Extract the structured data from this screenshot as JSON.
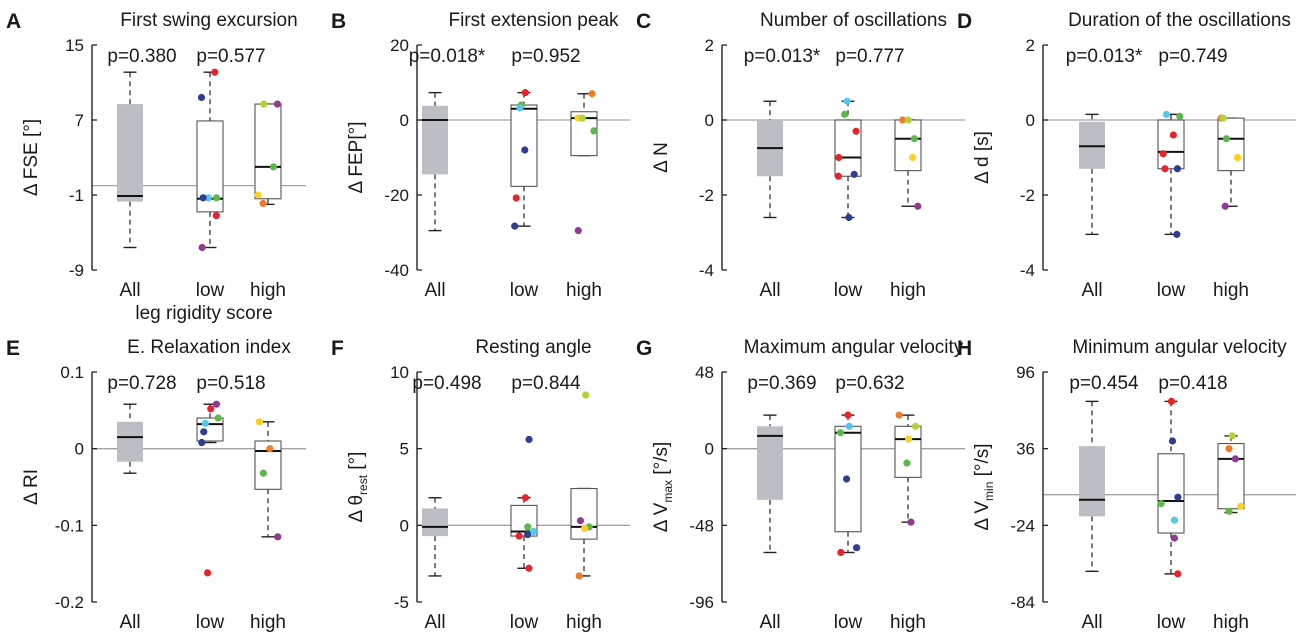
{
  "figure": {
    "colors": {
      "grey_box": "#bdbec3",
      "axis": "#222222",
      "zero_line": "#a3a3a3",
      "red": "#e8232a",
      "blue": "#2e3f92",
      "cyan": "#56c7ee",
      "green": "#5cb848",
      "orange": "#ee7d2b",
      "purple": "#8e3c91",
      "yellow": "#fbd123",
      "lime": "#b5d138"
    }
  },
  "chart_data": [
    {
      "letter": "A",
      "title": "First swing excursion",
      "type": "box",
      "ylabel_main": "Δ FSE [°]",
      "ylabel_sub": "",
      "ylim": [
        -9,
        15
      ],
      "yticks": [
        "-9",
        "-1",
        "7",
        "15"
      ],
      "ref_line": 0,
      "xlabel": "leg rigidity score",
      "categories": [
        "All",
        "low",
        "high"
      ],
      "p_values": [
        "p=0.380",
        "p=0.577"
      ],
      "boxes": [
        {
          "min": -6.6,
          "q1": -1.7,
          "median": -1.1,
          "q3": 8.7,
          "max": 12.1
        },
        {
          "min": -6.6,
          "q1": -2.8,
          "median": -1.4,
          "q3": 6.9,
          "max": 12.1
        },
        {
          "min": -2.0,
          "q1": -1.4,
          "median": 2.0,
          "q3": 8.7,
          "max": 8.7
        }
      ],
      "points": [
        {
          "group": "low",
          "value": 12.1,
          "color": "red"
        },
        {
          "group": "low",
          "value": 9.4,
          "color": "blue"
        },
        {
          "group": "low",
          "value": -1.3,
          "color": "cyan"
        },
        {
          "group": "low",
          "value": -1.3,
          "color": "green"
        },
        {
          "group": "low",
          "value": -1.3,
          "color": "blue"
        },
        {
          "group": "low",
          "value": -3.2,
          "color": "red"
        },
        {
          "group": "low",
          "value": -6.6,
          "color": "purple"
        },
        {
          "group": "high",
          "value": 8.7,
          "color": "purple"
        },
        {
          "group": "high",
          "value": 8.7,
          "color": "lime"
        },
        {
          "group": "high",
          "value": 2.0,
          "color": "green"
        },
        {
          "group": "high",
          "value": -1.0,
          "color": "yellow"
        },
        {
          "group": "high",
          "value": -1.9,
          "color": "orange"
        }
      ]
    },
    {
      "letter": "B",
      "title": "First extension peak",
      "type": "box",
      "ylabel_main": "Δ FEP[°]",
      "ylabel_sub": "",
      "ylim": [
        -40,
        20
      ],
      "yticks": [
        "-40",
        "-20",
        "0",
        "20"
      ],
      "ref_line": 0,
      "xlabel": "",
      "categories": [
        "All",
        "low",
        "high"
      ],
      "p_values": [
        "p=0.018*",
        "p=0.952"
      ],
      "boxes": [
        {
          "min": -29.5,
          "q1": -14.5,
          "median": 0,
          "q3": 3.8,
          "max": 7.3
        },
        {
          "min": -28.3,
          "q1": -17.7,
          "median": 3.0,
          "q3": 4.0,
          "max": 7.3
        },
        {
          "min": -9.5,
          "q1": -9.5,
          "median": 0.5,
          "q3": 2.2,
          "max": 7.0
        }
      ],
      "points": [
        {
          "group": "low",
          "value": 7.3,
          "color": "red"
        },
        {
          "group": "low",
          "value": 4.0,
          "color": "green"
        },
        {
          "group": "low",
          "value": 3.2,
          "color": "cyan"
        },
        {
          "group": "low",
          "value": -8.0,
          "color": "blue"
        },
        {
          "group": "low",
          "value": -20.8,
          "color": "red"
        },
        {
          "group": "low",
          "value": -28.3,
          "color": "blue"
        },
        {
          "group": "high",
          "value": 7.0,
          "color": "orange"
        },
        {
          "group": "high",
          "value": 0.5,
          "color": "yellow"
        },
        {
          "group": "high",
          "value": 0.5,
          "color": "lime"
        },
        {
          "group": "high",
          "value": -2.9,
          "color": "green"
        },
        {
          "group": "high",
          "value": -29.5,
          "color": "purple"
        }
      ]
    },
    {
      "letter": "C",
      "title": "Number of oscillations",
      "type": "box",
      "ylabel_main": "Δ N",
      "ylabel_sub": "",
      "ylim": [
        -4,
        2
      ],
      "yticks": [
        "-4",
        "-2",
        "0",
        "2"
      ],
      "ref_line": 0,
      "xlabel": "",
      "categories": [
        "All",
        "low",
        "high"
      ],
      "p_values": [
        "p=0.013*",
        "p=0.777"
      ],
      "boxes": [
        {
          "min": -2.6,
          "q1": -1.5,
          "median": -0.75,
          "q3": 0,
          "max": 0.5
        },
        {
          "min": -2.6,
          "q1": -1.5,
          "median": -1.0,
          "q3": 0,
          "max": 0.5
        },
        {
          "min": -2.3,
          "q1": -1.35,
          "median": -0.5,
          "q3": 0,
          "max": 0
        }
      ],
      "points": [
        {
          "group": "low",
          "value": 0.5,
          "color": "cyan"
        },
        {
          "group": "low",
          "value": 0.15,
          "color": "green"
        },
        {
          "group": "low",
          "value": -0.3,
          "color": "red"
        },
        {
          "group": "low",
          "value": -1.0,
          "color": "red"
        },
        {
          "group": "low",
          "value": -1.45,
          "color": "blue"
        },
        {
          "group": "low",
          "value": -1.5,
          "color": "red"
        },
        {
          "group": "low",
          "value": -2.6,
          "color": "blue"
        },
        {
          "group": "high",
          "value": 0,
          "color": "orange"
        },
        {
          "group": "high",
          "value": 0,
          "color": "lime"
        },
        {
          "group": "high",
          "value": -0.5,
          "color": "green"
        },
        {
          "group": "high",
          "value": -1.0,
          "color": "yellow"
        },
        {
          "group": "high",
          "value": -2.3,
          "color": "purple"
        }
      ]
    },
    {
      "letter": "D",
      "title": "Duration of the oscillations",
      "type": "box",
      "ylabel_main": "Δ d [s]",
      "ylabel_sub": "",
      "ylim": [
        -4,
        2
      ],
      "yticks": [
        "-4",
        "-2",
        "0",
        "2"
      ],
      "ref_line": 0,
      "xlabel": "",
      "categories": [
        "All",
        "low",
        "high"
      ],
      "p_values": [
        "p=0.013*",
        "p=0.749"
      ],
      "boxes": [
        {
          "min": -3.05,
          "q1": -1.3,
          "median": -0.7,
          "q3": -0.05,
          "max": 0.15
        },
        {
          "min": -3.05,
          "q1": -1.3,
          "median": -0.85,
          "q3": 0,
          "max": 0.15
        },
        {
          "min": -2.3,
          "q1": -1.35,
          "median": -0.5,
          "q3": 0.05,
          "max": 0.05
        }
      ],
      "points": [
        {
          "group": "low",
          "value": 0.15,
          "color": "cyan"
        },
        {
          "group": "low",
          "value": 0.1,
          "color": "green"
        },
        {
          "group": "low",
          "value": -0.4,
          "color": "red"
        },
        {
          "group": "low",
          "value": -0.9,
          "color": "red"
        },
        {
          "group": "low",
          "value": -1.3,
          "color": "red"
        },
        {
          "group": "low",
          "value": -1.3,
          "color": "blue"
        },
        {
          "group": "low",
          "value": -3.05,
          "color": "blue"
        },
        {
          "group": "high",
          "value": 0.05,
          "color": "orange"
        },
        {
          "group": "high",
          "value": 0.05,
          "color": "lime"
        },
        {
          "group": "high",
          "value": -0.5,
          "color": "green"
        },
        {
          "group": "high",
          "value": -1.0,
          "color": "yellow"
        },
        {
          "group": "high",
          "value": -2.3,
          "color": "purple"
        }
      ]
    },
    {
      "letter": "E",
      "title": "E. Relaxation index",
      "type": "box",
      "ylabel_main": "Δ RI",
      "ylabel_sub": "",
      "ylim": [
        -0.2,
        0.1
      ],
      "yticks": [
        "-0.2",
        "-0.1",
        "0",
        "0.1"
      ],
      "ref_line": 0,
      "xlabel": "",
      "categories": [
        "All",
        "low",
        "high"
      ],
      "p_values": [
        "p=0.728",
        "p=0.518"
      ],
      "boxes": [
        {
          "min": -0.032,
          "q1": -0.017,
          "median": 0.015,
          "q3": 0.035,
          "max": 0.058
        },
        {
          "min": 0.008,
          "q1": 0.01,
          "median": 0.032,
          "q3": 0.04,
          "max": 0.058
        },
        {
          "min": -0.115,
          "q1": -0.053,
          "median": -0.003,
          "q3": 0.01,
          "max": 0.035
        }
      ],
      "points": [
        {
          "group": "low",
          "value": 0.058,
          "color": "purple"
        },
        {
          "group": "low",
          "value": 0.052,
          "color": "red"
        },
        {
          "group": "low",
          "value": 0.04,
          "color": "green"
        },
        {
          "group": "low",
          "value": 0.033,
          "color": "cyan"
        },
        {
          "group": "low",
          "value": 0.022,
          "color": "blue"
        },
        {
          "group": "low",
          "value": 0.008,
          "color": "blue"
        },
        {
          "group": "low",
          "value": -0.162,
          "color": "red"
        },
        {
          "group": "high",
          "value": 0.035,
          "color": "yellow"
        },
        {
          "group": "high",
          "value": 0.0,
          "color": "orange"
        },
        {
          "group": "high",
          "value": -0.032,
          "color": "green"
        },
        {
          "group": "high",
          "value": -0.115,
          "color": "purple"
        }
      ]
    },
    {
      "letter": "F",
      "title": "Resting angle",
      "type": "box",
      "ylabel_main": "Δ θ",
      "ylabel_sub": "rest",
      "ylabel_tail": " [°]",
      "ylim": [
        -5,
        10
      ],
      "yticks": [
        "-5",
        "0",
        "5",
        "10"
      ],
      "ref_line": 0,
      "xlabel": "",
      "categories": [
        "All",
        "low",
        "high"
      ],
      "p_values": [
        "p=0.498",
        "p=0.844"
      ],
      "boxes": [
        {
          "min": -3.3,
          "q1": -0.7,
          "median": -0.1,
          "q3": 1.1,
          "max": 1.8
        },
        {
          "min": -2.8,
          "q1": -0.7,
          "median": -0.4,
          "q3": 1.3,
          "max": 1.8
        },
        {
          "min": -3.3,
          "q1": -0.9,
          "median": -0.1,
          "q3": 2.4,
          "max": 2.4
        }
      ],
      "points": [
        {
          "group": "low",
          "value": 5.6,
          "color": "blue"
        },
        {
          "group": "low",
          "value": 1.8,
          "color": "red"
        },
        {
          "group": "low",
          "value": -0.1,
          "color": "green"
        },
        {
          "group": "low",
          "value": -0.4,
          "color": "cyan"
        },
        {
          "group": "low",
          "value": -0.6,
          "color": "blue"
        },
        {
          "group": "low",
          "value": -0.7,
          "color": "red"
        },
        {
          "group": "low",
          "value": -2.8,
          "color": "red"
        },
        {
          "group": "high",
          "value": 8.5,
          "color": "lime"
        },
        {
          "group": "high",
          "value": 0.3,
          "color": "purple"
        },
        {
          "group": "high",
          "value": -0.1,
          "color": "green"
        },
        {
          "group": "high",
          "value": -0.2,
          "color": "yellow"
        },
        {
          "group": "high",
          "value": -3.3,
          "color": "orange"
        }
      ]
    },
    {
      "letter": "G",
      "title": "Maximum angular velocity",
      "type": "box",
      "ylabel_main": "Δ V",
      "ylabel_sub": "max",
      "ylabel_tail": " [°/s]",
      "ylim": [
        -96,
        48
      ],
      "yticks": [
        "-96",
        "-48",
        "0",
        "48"
      ],
      "ref_line": 0,
      "xlabel": "",
      "categories": [
        "All",
        "low",
        "high"
      ],
      "p_values": [
        "p=0.369",
        "p=0.632"
      ],
      "boxes": [
        {
          "min": -65,
          "q1": -32,
          "median": 8,
          "q3": 14,
          "max": 21
        },
        {
          "min": -65,
          "q1": -52,
          "median": 10,
          "q3": 14,
          "max": 21
        },
        {
          "min": -46,
          "q1": -18,
          "median": 6,
          "q3": 14,
          "max": 21
        }
      ],
      "points": [
        {
          "group": "low",
          "value": 21,
          "color": "red"
        },
        {
          "group": "low",
          "value": 14,
          "color": "cyan"
        },
        {
          "group": "low",
          "value": 10,
          "color": "green"
        },
        {
          "group": "low",
          "value": -19,
          "color": "blue"
        },
        {
          "group": "low",
          "value": -62,
          "color": "blue"
        },
        {
          "group": "low",
          "value": -65,
          "color": "red"
        },
        {
          "group": "high",
          "value": 21,
          "color": "orange"
        },
        {
          "group": "high",
          "value": 14,
          "color": "lime"
        },
        {
          "group": "high",
          "value": 6,
          "color": "yellow"
        },
        {
          "group": "high",
          "value": -9,
          "color": "green"
        },
        {
          "group": "high",
          "value": -46,
          "color": "purple"
        }
      ]
    },
    {
      "letter": "H",
      "title": "Minimum angular velocity",
      "type": "box",
      "ylabel_main": "Δ V",
      "ylabel_sub": "min",
      "ylabel_tail": " [°/s]",
      "ylim": [
        -84,
        96
      ],
      "yticks": [
        "-84",
        "-24",
        "36",
        "96"
      ],
      "ref_line": 0,
      "xlabel": "",
      "categories": [
        "All",
        "low",
        "high"
      ],
      "p_values": [
        "p=0.454",
        "p=0.418"
      ],
      "boxes": [
        {
          "min": -60,
          "q1": -17,
          "median": -4,
          "q3": 38,
          "max": 73
        },
        {
          "min": -62,
          "q1": -30,
          "median": -5,
          "q3": 32,
          "max": 73
        },
        {
          "min": -14,
          "q1": -11,
          "median": 28,
          "q3": 40,
          "max": 46
        }
      ],
      "points": [
        {
          "group": "low",
          "value": 73,
          "color": "red"
        },
        {
          "group": "low",
          "value": 42,
          "color": "blue"
        },
        {
          "group": "low",
          "value": -2,
          "color": "blue"
        },
        {
          "group": "low",
          "value": -7,
          "color": "green"
        },
        {
          "group": "low",
          "value": -20,
          "color": "cyan"
        },
        {
          "group": "low",
          "value": -34,
          "color": "purple"
        },
        {
          "group": "low",
          "value": -62,
          "color": "red"
        },
        {
          "group": "high",
          "value": 46,
          "color": "lime"
        },
        {
          "group": "high",
          "value": 36,
          "color": "orange"
        },
        {
          "group": "high",
          "value": 28,
          "color": "purple"
        },
        {
          "group": "high",
          "value": -9,
          "color": "yellow"
        },
        {
          "group": "high",
          "value": -13,
          "color": "green"
        }
      ]
    }
  ]
}
